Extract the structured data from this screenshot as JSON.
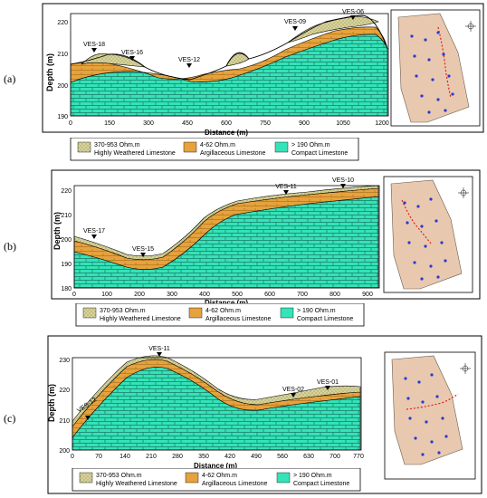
{
  "panels": [
    {
      "label": "(a)",
      "ylabel": "Depth (m)",
      "xlabel": "Distance (m)",
      "yticks": [
        "190",
        "200",
        "210",
        "220"
      ],
      "xticks": [
        "0",
        "150",
        "300",
        "450",
        "600",
        "750",
        "900",
        "1050",
        "1200"
      ],
      "ves": [
        "VES-18",
        "VES-16",
        "VES-12",
        "VES-09",
        "VES-06"
      ],
      "legend": [
        {
          "ohm": "370-953 Ohm.m",
          "name": "Highly Weathered Limestone"
        },
        {
          "ohm": "4-62 Ohm.m",
          "name": "Argillaceous Limestone"
        },
        {
          "ohm": "> 190 Ohm.m",
          "name": "Compact Limestone"
        }
      ]
    },
    {
      "label": "(b)",
      "ylabel": "Depth (m)",
      "xlabel": "Distance (m)",
      "yticks": [
        "180",
        "190",
        "200",
        "210",
        "220"
      ],
      "xticks": [
        "0",
        "100",
        "200",
        "300",
        "400",
        "500",
        "600",
        "700",
        "800",
        "900"
      ],
      "ves": [
        "VES-17",
        "VES-15",
        "VES-11",
        "VES-10"
      ],
      "legend": [
        {
          "ohm": "370-953 Ohm.m",
          "name": "Highly Weathered Limestone"
        },
        {
          "ohm": "4-62 Ohm.m",
          "name": "Argillaceous Limestone"
        },
        {
          "ohm": "> 190 Ohm.m",
          "name": "Compact Limestone"
        }
      ]
    },
    {
      "label": "(c)",
      "ylabel": "Depth (m)",
      "xlabel": "Distance (m)",
      "yticks": [
        "200",
        "210",
        "220",
        "230"
      ],
      "xticks": [
        "0",
        "70",
        "140",
        "210",
        "280",
        "350",
        "420",
        "490",
        "560",
        "630",
        "700",
        "770"
      ],
      "ves": [
        "VES-12",
        "VES-11",
        "VES-02",
        "VES-01"
      ],
      "legend": [
        {
          "ohm": "370-953 Ohm.m",
          "name": "Highly Weathered Limestone"
        },
        {
          "ohm": "4-62 Ohm.m",
          "name": "Argillaceous Limestone"
        },
        {
          "ohm": "> 190 Ohm.m",
          "name": "Compact Limestone"
        }
      ]
    }
  ],
  "colors": {
    "weathered": "#d8d49a",
    "argillaceous": "#e6a23c",
    "compact": "#34e3b8",
    "map": "#e8c9b0",
    "profile_line": "#e0201c"
  }
}
